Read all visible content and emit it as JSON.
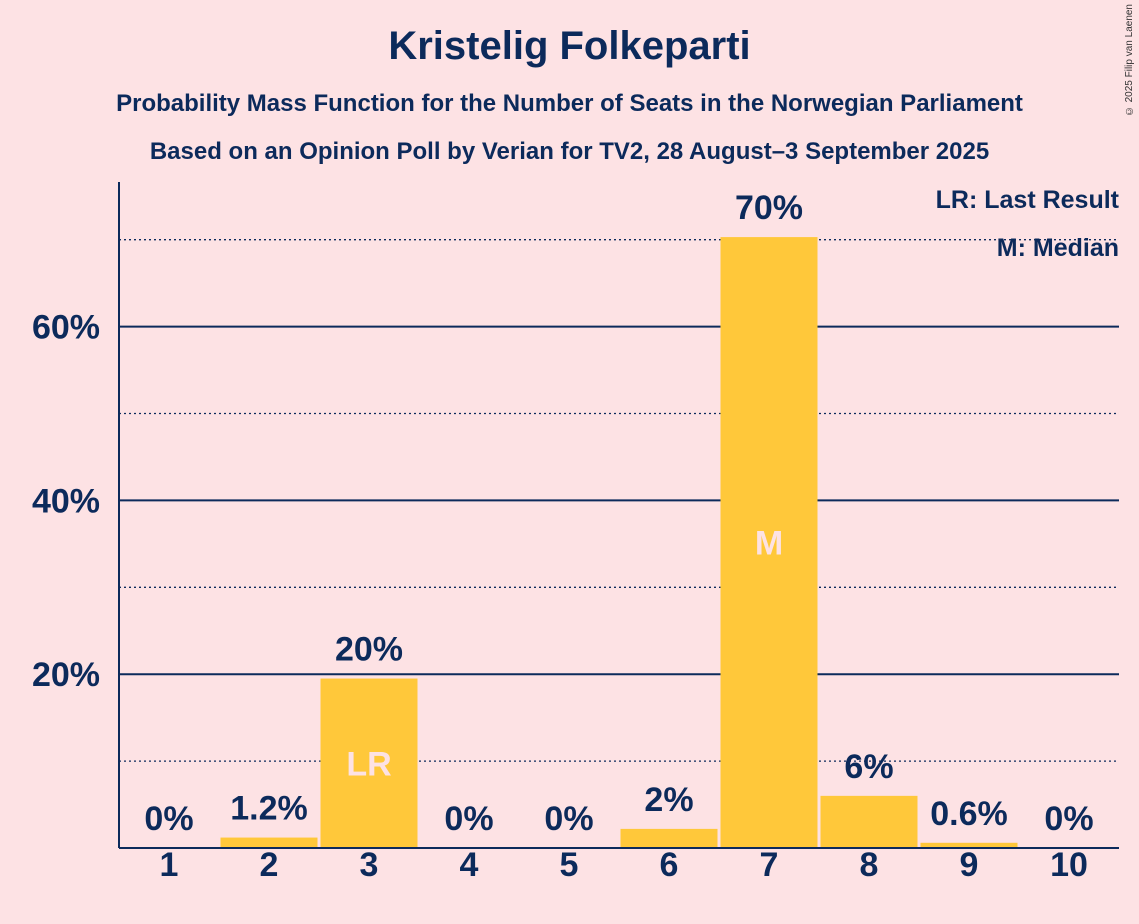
{
  "title": "Kristelig Folkeparti",
  "subtitle_1": "Probability Mass Function for the Number of Seats in the Norwegian Parliament",
  "subtitle_2": "Based on an Opinion Poll by Verian for TV2, 28 August–3 September 2025",
  "copyright": "© 2025 Filip van Laenen",
  "legend": {
    "last_result": "LR: Last Result",
    "median": "M: Median"
  },
  "colors": {
    "background": "#fde2e4",
    "bar": "#ffc83a",
    "text": "#0c2a5b",
    "bar_marker_text": "#fde2e4"
  },
  "chart_data": {
    "type": "bar",
    "categories": [
      "1",
      "2",
      "3",
      "4",
      "5",
      "6",
      "7",
      "8",
      "9",
      "10"
    ],
    "values": [
      0,
      1.2,
      19.5,
      0,
      0,
      2.2,
      70.3,
      6.0,
      0.6,
      0
    ],
    "value_labels": [
      "0%",
      "1.2%",
      "20%",
      "0%",
      "0%",
      "2%",
      "70%",
      "6%",
      "0.6%",
      "0%"
    ],
    "bar_markers": {
      "3": "LR",
      "7": "M"
    },
    "yticks": [
      20,
      40,
      60
    ],
    "ytick_labels": [
      "20%",
      "40%",
      "60%"
    ],
    "minor_gridlines": [
      10,
      30,
      50,
      70
    ],
    "ylim": [
      0,
      76
    ],
    "grid": true,
    "legend_position": "top-right"
  }
}
